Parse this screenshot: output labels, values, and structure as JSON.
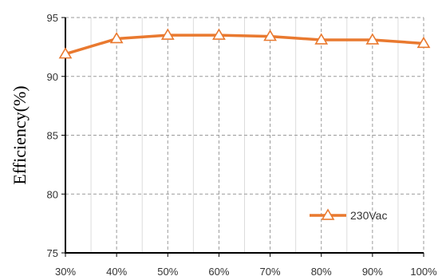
{
  "chart_data": {
    "type": "line",
    "ylabel": "Efficiency(%)",
    "xlabel": "",
    "x_categories": [
      "30%",
      "40%",
      "50%",
      "60%",
      "70%",
      "80%",
      "90%",
      "100%"
    ],
    "ylim": [
      75,
      95
    ],
    "yticks": [
      75,
      80,
      85,
      90,
      95
    ],
    "grid": true,
    "legend_position": "bottom-right",
    "series": [
      {
        "name": "230Vac",
        "color": "#E9792F",
        "marker": "triangle",
        "values": [
          91.9,
          93.2,
          93.5,
          93.5,
          93.4,
          93.1,
          93.1,
          92.8
        ]
      }
    ]
  }
}
